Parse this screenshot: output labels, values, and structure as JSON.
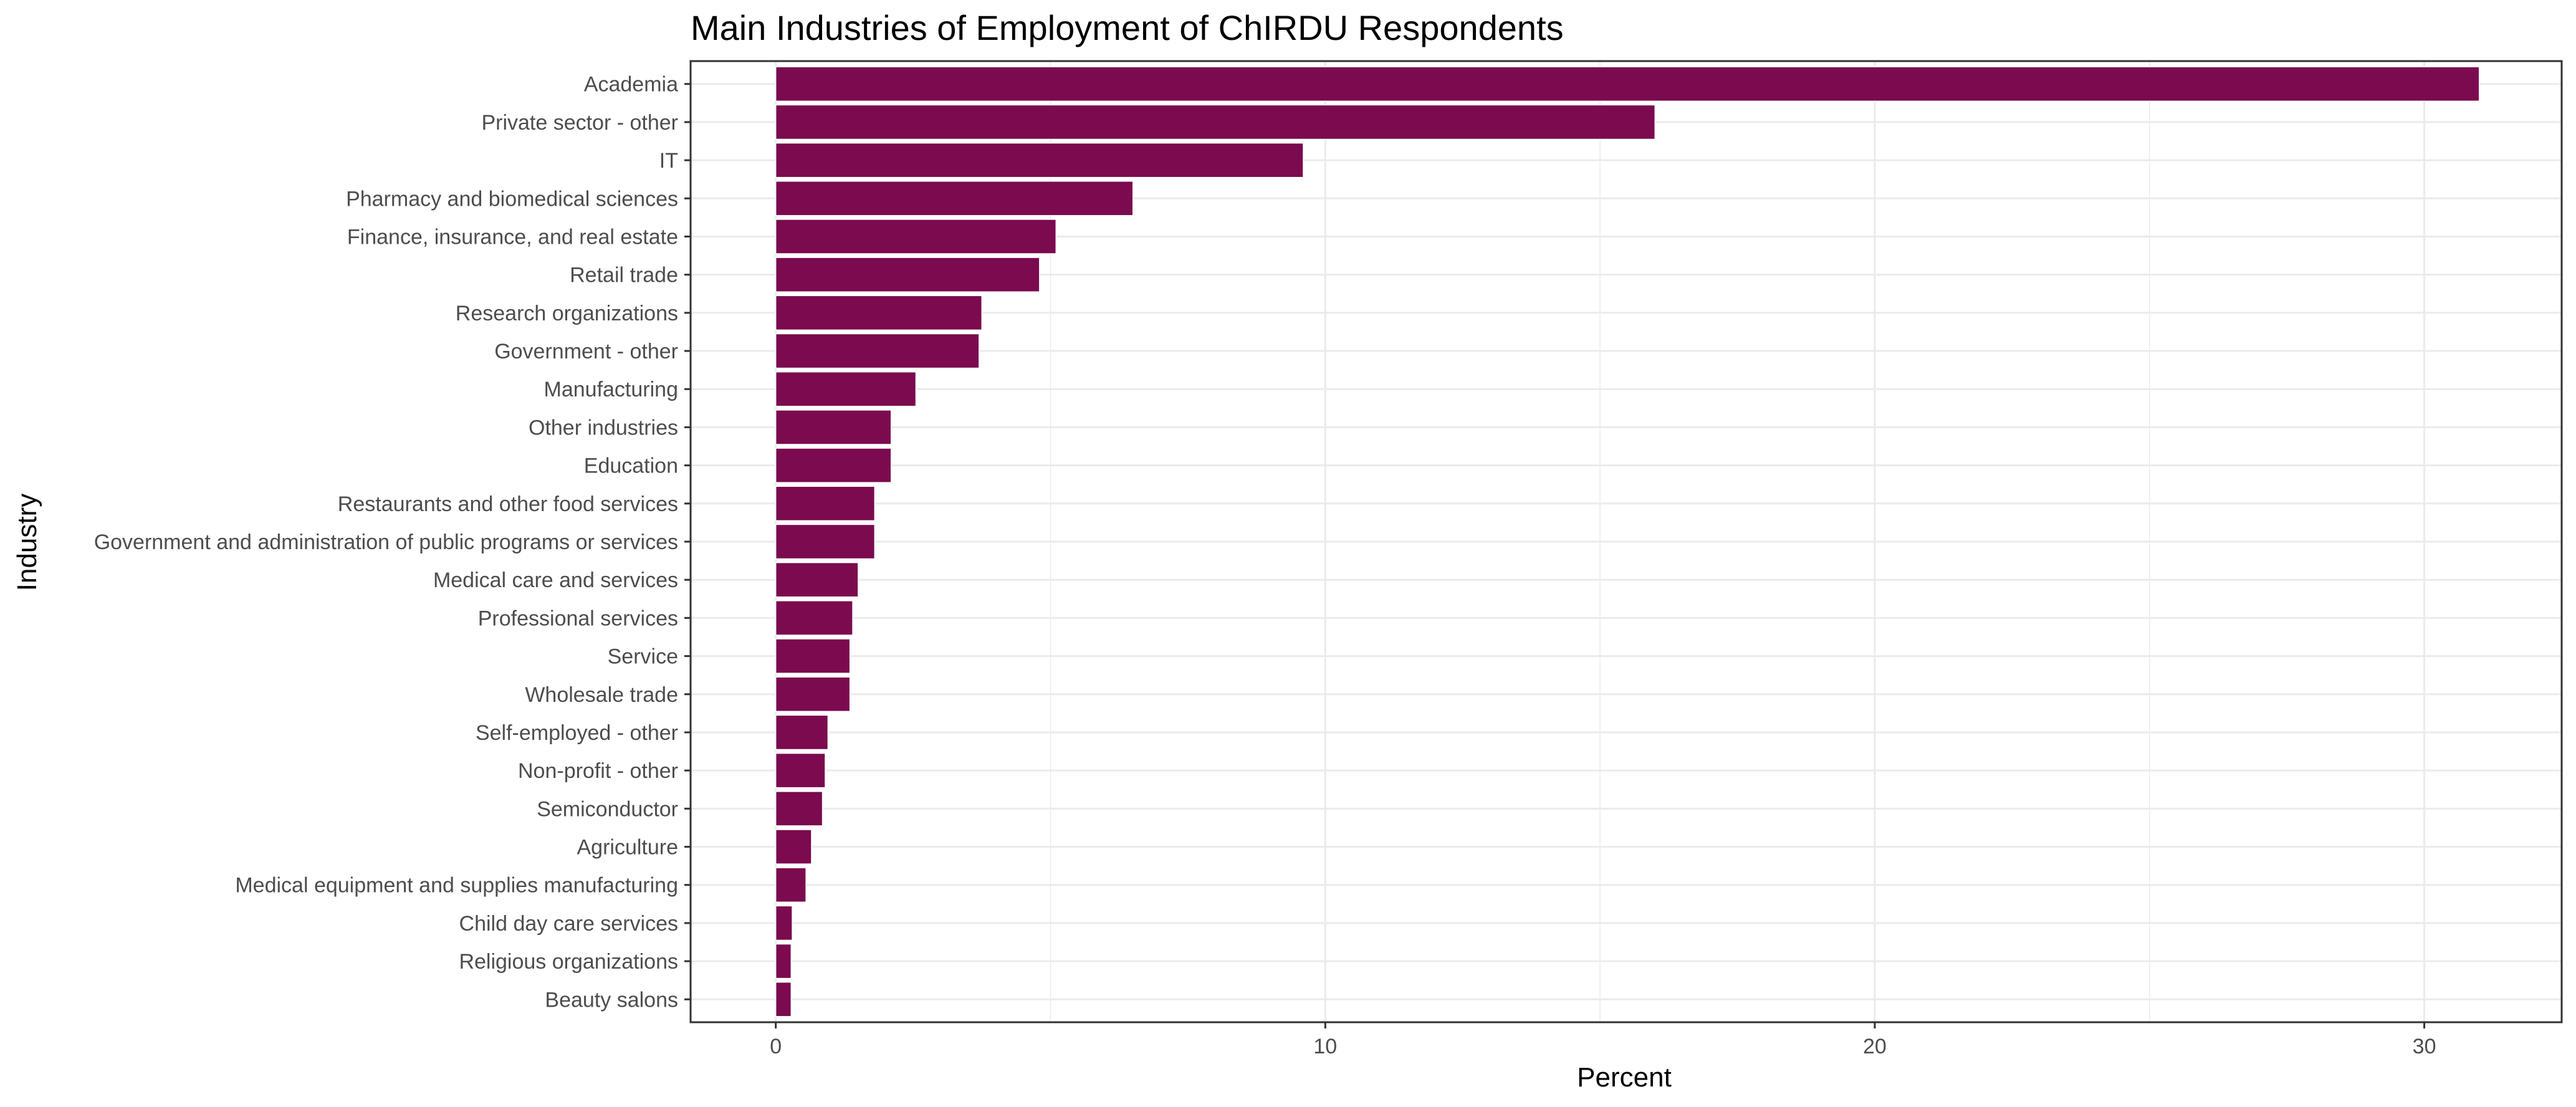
{
  "chart_data": {
    "type": "bar",
    "orientation": "horizontal",
    "title": "Main Industries of Employment of ChIRDU Respondents",
    "xlabel": "Percent",
    "ylabel": "Industry",
    "xlim": [
      -1.55,
      32.5
    ],
    "xticks": [
      0,
      10,
      20,
      30
    ],
    "grid": true,
    "legend": "none",
    "bar_color": "#7b0a4f",
    "grid_color": "#ebebeb",
    "categories": [
      "Academia",
      "Private sector - other",
      "IT",
      "Pharmacy and biomedical sciences",
      "Finance, insurance, and real estate",
      "Retail trade",
      "Research organizations",
      "Government - other",
      "Manufacturing",
      "Other industries",
      "Education",
      "Restaurants and other food services",
      "Government and administration of public programs or services",
      "Medical care and services",
      "Professional services",
      "Service",
      "Wholesale trade",
      "Self-employed - other",
      "Non-profit - other",
      "Semiconductor",
      "Agriculture",
      "Medical equipment and supplies manufacturing",
      "Child day care services",
      "Religious organizations",
      "Beauty salons"
    ],
    "values": [
      31.0,
      16.0,
      9.6,
      6.5,
      5.1,
      4.8,
      3.75,
      3.7,
      2.55,
      2.1,
      2.1,
      1.8,
      1.8,
      1.5,
      1.4,
      1.35,
      1.35,
      0.95,
      0.9,
      0.85,
      0.65,
      0.55,
      0.3,
      0.28,
      0.28
    ]
  }
}
